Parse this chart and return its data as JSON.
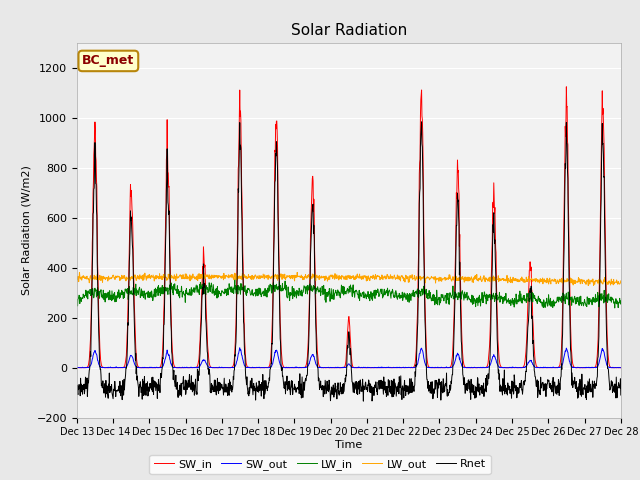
{
  "title": "Solar Radiation",
  "ylabel": "Solar Radiation (W/m2)",
  "xlabel": "Time",
  "legend_label": "BC_met",
  "series_names": [
    "SW_in",
    "SW_out",
    "LW_in",
    "LW_out",
    "Rnet"
  ],
  "series_colors": [
    "red",
    "blue",
    "green",
    "orange",
    "black"
  ],
  "ylim": [
    -200,
    1300
  ],
  "yticks": [
    -200,
    0,
    200,
    400,
    600,
    800,
    1000,
    1200
  ],
  "bg_color": "#e8e8e8",
  "plot_bg_color": "#f2f2f2",
  "grid_color": "#ffffff",
  "n_days": 15,
  "start_day": 13,
  "end_day": 28,
  "sw_peaks": [
    970,
    700,
    870,
    460,
    1040,
    990,
    760,
    200,
    0,
    1110,
    800,
    690,
    420,
    1060,
    1080
  ],
  "sw_widths": [
    0.06,
    0.06,
    0.06,
    0.06,
    0.06,
    0.06,
    0.06,
    0.04,
    0.04,
    0.06,
    0.06,
    0.06,
    0.06,
    0.06,
    0.06
  ],
  "lw_in_base": 290,
  "lw_out_base": 350,
  "night_rnet": -80,
  "figsize": [
    6.4,
    4.8
  ],
  "dpi": 100
}
